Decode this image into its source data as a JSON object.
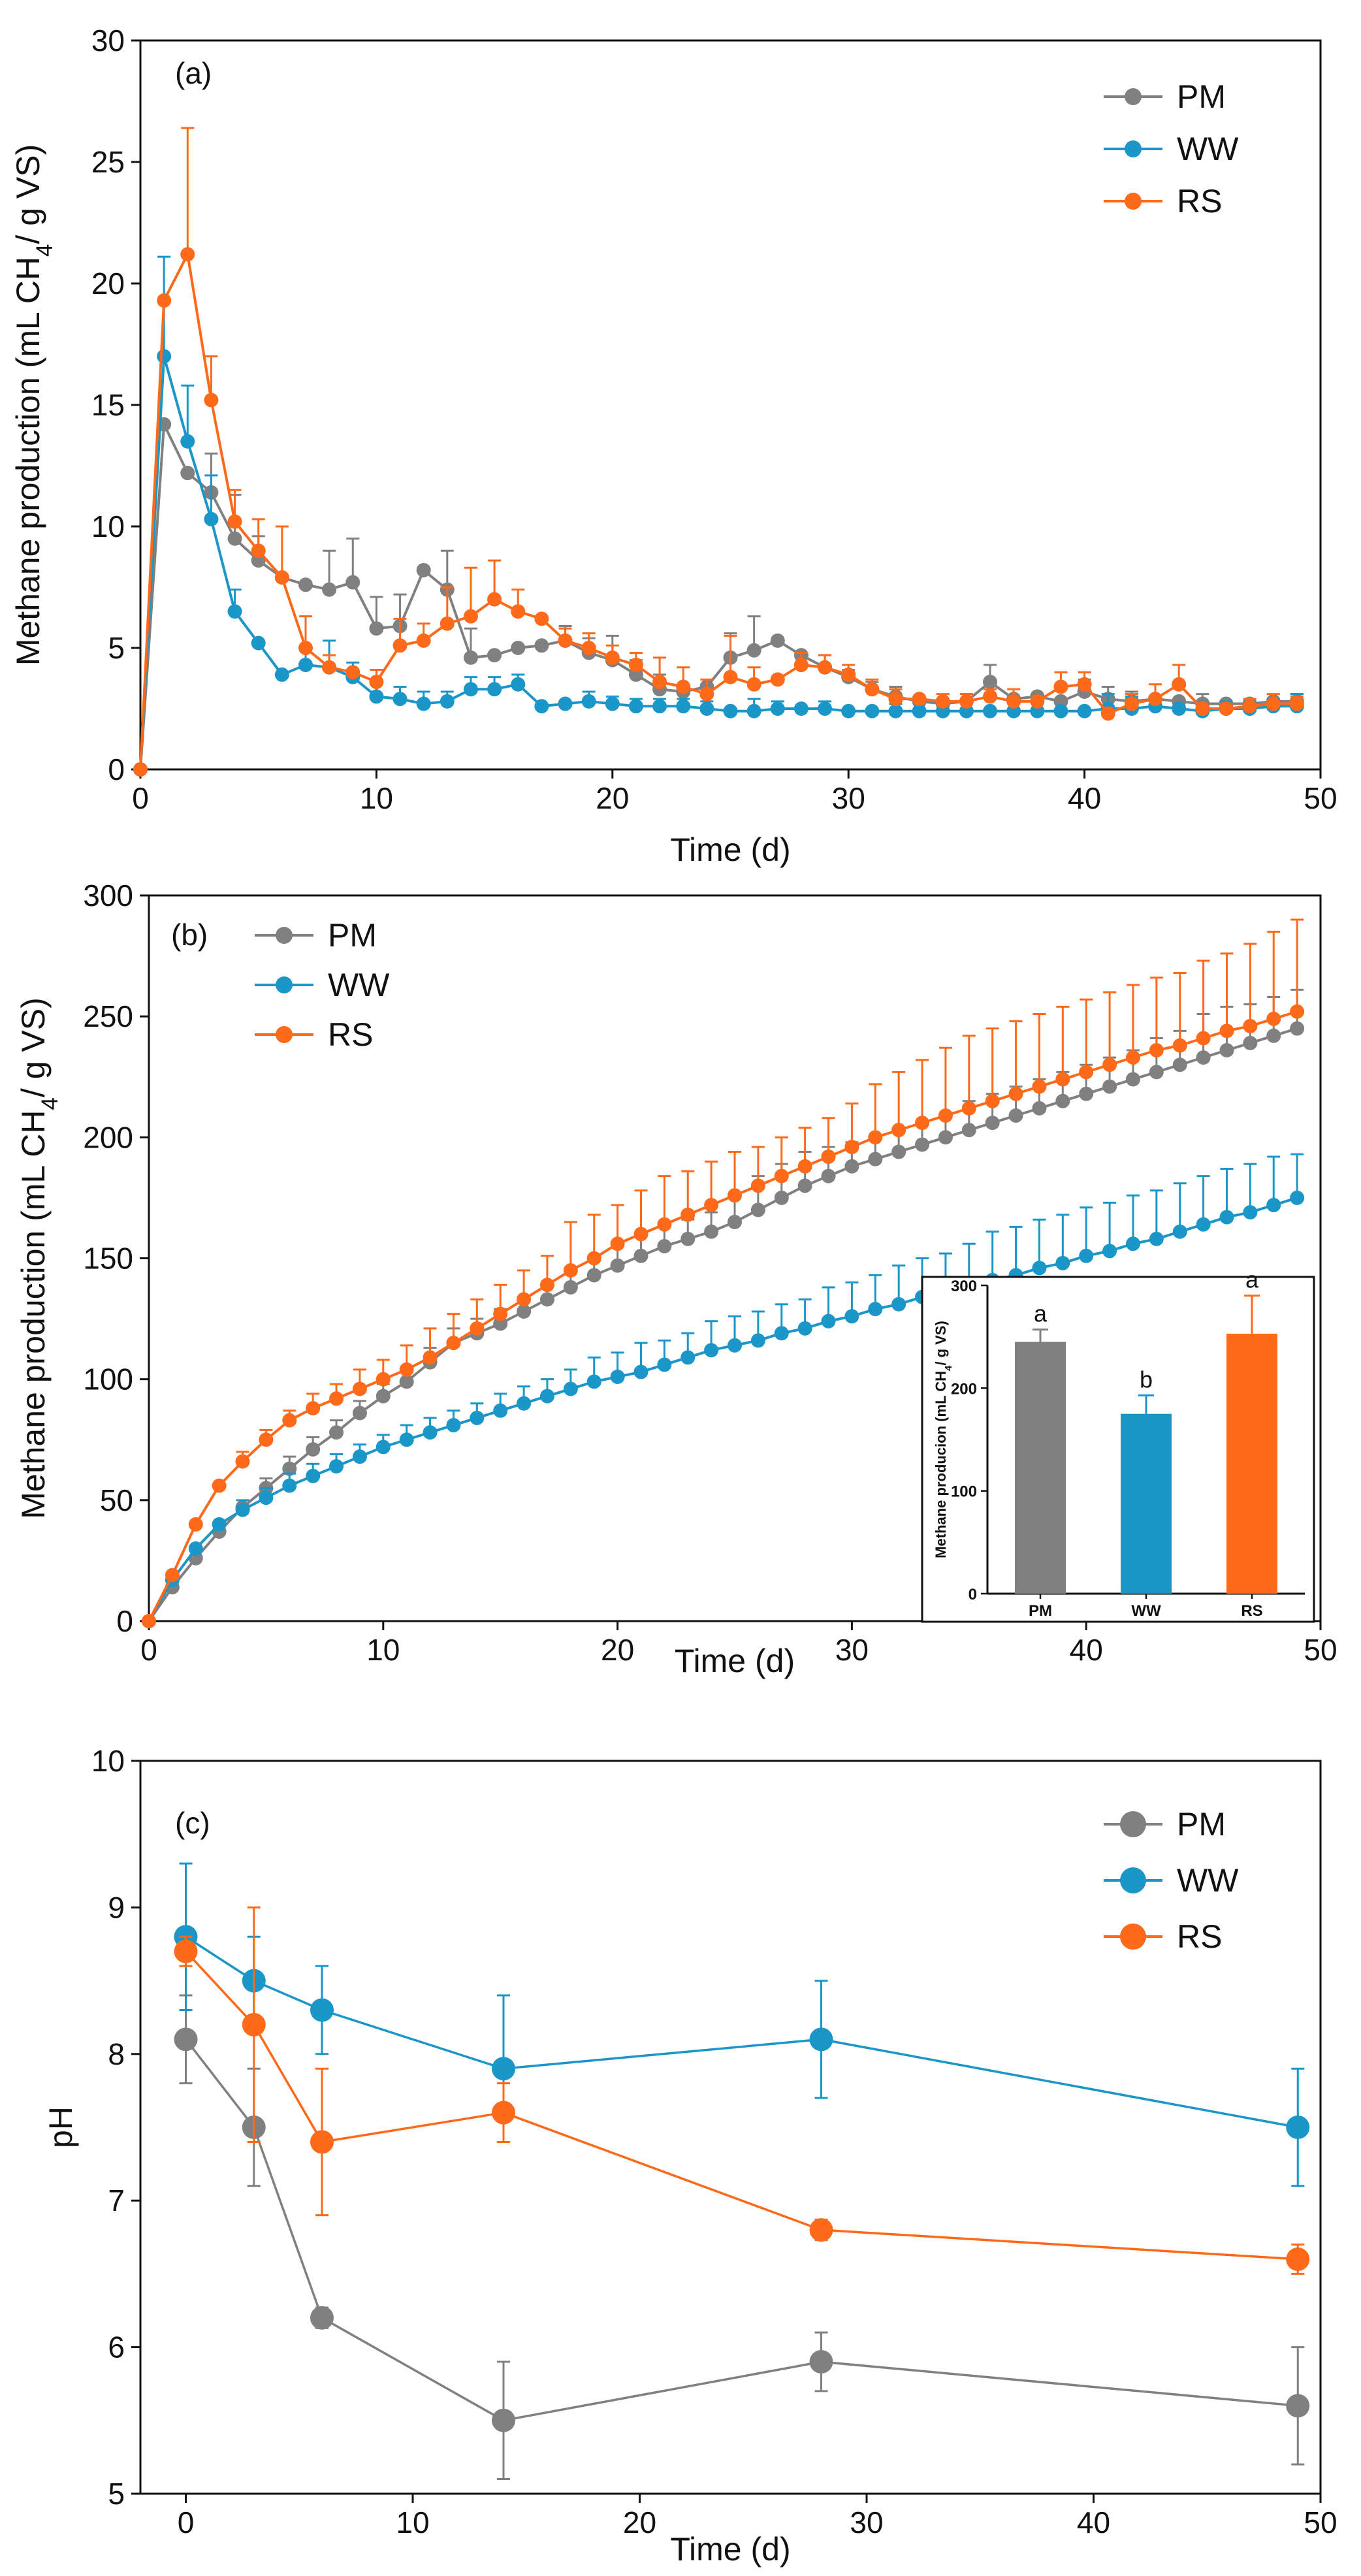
{
  "colors": {
    "PM": "#808080",
    "WW": "#1a96c8",
    "RS": "#ff6a1a",
    "axis": "#111111"
  },
  "chart_data": [
    {
      "type": "line",
      "panel": "(a)",
      "xlabel": "Time (d)",
      "ylabel": "Methane production (mL CH4/ g VS)",
      "ylabel_parts": [
        "Methane production (mL CH",
        "4",
        "/ g VS)"
      ],
      "xlim": [
        0,
        50
      ],
      "ylim": [
        0,
        30
      ],
      "xticks": [
        0,
        10,
        20,
        30,
        40,
        50
      ],
      "yticks": [
        0,
        5,
        10,
        15,
        20,
        25,
        30
      ],
      "legend": "top-right",
      "series": [
        {
          "name": "PM",
          "x": [
            0,
            1,
            2,
            3,
            4,
            5,
            6,
            7,
            8,
            9,
            10,
            11,
            12,
            13,
            14,
            15,
            16,
            17,
            18,
            19,
            20,
            21,
            22,
            23,
            24,
            25,
            26,
            27,
            28,
            29,
            30,
            31,
            32,
            33,
            34,
            35,
            36,
            37,
            38,
            39,
            40,
            41,
            42,
            43,
            44,
            45,
            46,
            47,
            48,
            49
          ],
          "y": [
            0,
            14.2,
            12.2,
            11.4,
            9.5,
            8.6,
            7.9,
            7.6,
            7.4,
            7.7,
            5.8,
            5.9,
            8.2,
            7.4,
            4.6,
            4.7,
            5.0,
            5.1,
            5.3,
            4.8,
            4.5,
            3.9,
            3.3,
            3.2,
            3.4,
            4.6,
            4.9,
            5.3,
            4.7,
            4.2,
            3.8,
            3.3,
            3.0,
            2.8,
            2.7,
            2.8,
            3.6,
            2.9,
            3.0,
            2.8,
            3.2,
            2.9,
            2.8,
            2.9,
            2.8,
            2.7,
            2.7,
            2.7,
            2.8,
            2.8
          ],
          "err": [
            0,
            0,
            0,
            1.6,
            1.8,
            1.0,
            0,
            0,
            1.6,
            1.8,
            1.3,
            1.3,
            0,
            1.6,
            1.2,
            0,
            0,
            0,
            0.6,
            0.6,
            1.0,
            0.6,
            0.6,
            0,
            0,
            1.0,
            1.4,
            0,
            0,
            0.5,
            0.3,
            0.3,
            0.4,
            0,
            0,
            0.3,
            0.7,
            0,
            0,
            0,
            0.5,
            0.5,
            0.4,
            0,
            0,
            0.4,
            0,
            0,
            0,
            0.3
          ]
        },
        {
          "name": "WW",
          "x": [
            0,
            1,
            2,
            3,
            4,
            5,
            6,
            7,
            8,
            9,
            10,
            11,
            12,
            13,
            14,
            15,
            16,
            17,
            18,
            19,
            20,
            21,
            22,
            23,
            24,
            25,
            26,
            27,
            28,
            29,
            30,
            31,
            32,
            33,
            34,
            35,
            36,
            37,
            38,
            39,
            40,
            41,
            42,
            43,
            44,
            45,
            46,
            47,
            48,
            49
          ],
          "y": [
            0,
            17.0,
            13.5,
            10.3,
            6.5,
            5.2,
            3.9,
            4.3,
            4.2,
            3.8,
            3.0,
            2.9,
            2.7,
            2.8,
            3.3,
            3.3,
            3.5,
            2.6,
            2.7,
            2.8,
            2.7,
            2.6,
            2.6,
            2.6,
            2.5,
            2.4,
            2.4,
            2.5,
            2.5,
            2.5,
            2.4,
            2.4,
            2.4,
            2.4,
            2.4,
            2.4,
            2.4,
            2.4,
            2.4,
            2.4,
            2.4,
            2.5,
            2.5,
            2.6,
            2.5,
            2.4,
            2.5,
            2.5,
            2.6,
            2.6
          ],
          "err": [
            0,
            4.1,
            2.3,
            1.8,
            0.9,
            0,
            0,
            0.7,
            1.1,
            0.6,
            0.5,
            0.5,
            0.5,
            0.4,
            0.5,
            0.5,
            0.4,
            0,
            0,
            0.4,
            0.3,
            0.3,
            0.3,
            0.3,
            0.3,
            0,
            0.5,
            0.3,
            0,
            0.3,
            0,
            0,
            0.3,
            0,
            0,
            0,
            0,
            0,
            0,
            0,
            0,
            0.6,
            0.5,
            0,
            0,
            0,
            0.3,
            0.3,
            0.3,
            0.5
          ]
        },
        {
          "name": "RS",
          "x": [
            0,
            1,
            2,
            3,
            4,
            5,
            6,
            7,
            8,
            9,
            10,
            11,
            12,
            13,
            14,
            15,
            16,
            17,
            18,
            19,
            20,
            21,
            22,
            23,
            24,
            25,
            26,
            27,
            28,
            29,
            30,
            31,
            32,
            33,
            34,
            35,
            36,
            37,
            38,
            39,
            40,
            41,
            42,
            43,
            44,
            45,
            46,
            47,
            48,
            49
          ],
          "y": [
            0,
            19.3,
            21.2,
            15.2,
            10.2,
            9.0,
            7.9,
            5.0,
            4.2,
            4.0,
            3.6,
            5.1,
            5.3,
            6.0,
            6.3,
            7.0,
            6.5,
            6.2,
            5.3,
            5.0,
            4.6,
            4.3,
            3.6,
            3.4,
            3.1,
            3.8,
            3.5,
            3.7,
            4.3,
            4.2,
            3.9,
            3.3,
            2.9,
            2.9,
            2.8,
            2.8,
            3.0,
            2.8,
            2.8,
            3.4,
            3.5,
            2.3,
            2.7,
            2.9,
            3.5,
            2.5,
            2.5,
            2.6,
            2.7,
            2.7
          ],
          "err": [
            0,
            0,
            5.2,
            1.8,
            1.3,
            1.3,
            2.1,
            1.3,
            0.5,
            0,
            0.5,
            1.1,
            0.7,
            1.5,
            2.0,
            1.6,
            0.9,
            0,
            0.5,
            0.6,
            0.5,
            0.5,
            1.0,
            0.8,
            0.6,
            1.7,
            0.7,
            0,
            0.5,
            0.5,
            0.4,
            0.4,
            0.4,
            0,
            0.3,
            0.3,
            0.3,
            0.5,
            0,
            0.6,
            0.5,
            0,
            0.4,
            0.6,
            0.8,
            0,
            0.2,
            0.3,
            0.4,
            0.3
          ]
        }
      ]
    },
    {
      "type": "line",
      "panel": "(b)",
      "xlabel": "Time (d)",
      "ylabel": "Methane production (mL CH4/ g VS)",
      "ylabel_parts": [
        "Methane production (mL CH",
        "4",
        "/ g VS)"
      ],
      "xlim": [
        0,
        50
      ],
      "ylim": [
        0,
        300
      ],
      "xticks": [
        0,
        10,
        20,
        30,
        40,
        50
      ],
      "yticks": [
        0,
        50,
        100,
        150,
        200,
        250,
        300
      ],
      "legend": "top-left",
      "series": [
        {
          "name": "PM",
          "x": [
            0,
            1,
            2,
            3,
            4,
            5,
            6,
            7,
            8,
            9,
            10,
            11,
            12,
            13,
            14,
            15,
            16,
            17,
            18,
            19,
            20,
            21,
            22,
            23,
            24,
            25,
            26,
            27,
            28,
            29,
            30,
            31,
            32,
            33,
            34,
            35,
            36,
            37,
            38,
            39,
            40,
            41,
            42,
            43,
            44,
            45,
            46,
            47,
            48,
            49
          ],
          "y": [
            0,
            14,
            26,
            37,
            47,
            55,
            63,
            71,
            78,
            86,
            93,
            99,
            107,
            115,
            119,
            123,
            128,
            133,
            138,
            143,
            147,
            151,
            155,
            158,
            161,
            165,
            170,
            175,
            180,
            184,
            188,
            191,
            194,
            197,
            200,
            203,
            206,
            209,
            212,
            215,
            218,
            221,
            224,
            227,
            230,
            233,
            236,
            239,
            242,
            245
          ],
          "err": [
            0,
            0,
            0,
            0,
            0,
            4,
            5,
            5,
            5,
            5,
            5,
            6,
            6,
            6,
            6,
            6,
            6,
            6,
            6,
            8,
            8,
            8,
            8,
            8,
            8,
            12,
            14,
            14,
            14,
            12,
            10,
            10,
            10,
            10,
            10,
            12,
            12,
            12,
            12,
            12,
            12,
            12,
            12,
            14,
            14,
            18,
            18,
            16,
            16,
            16
          ]
        },
        {
          "name": "WW",
          "x": [
            0,
            1,
            2,
            3,
            4,
            5,
            6,
            7,
            8,
            9,
            10,
            11,
            12,
            13,
            14,
            15,
            16,
            17,
            18,
            19,
            20,
            21,
            22,
            23,
            24,
            25,
            26,
            27,
            28,
            29,
            30,
            31,
            32,
            33,
            34,
            35,
            36,
            37,
            38,
            39,
            40,
            41,
            42,
            43,
            44,
            45,
            46,
            47,
            48,
            49
          ],
          "y": [
            0,
            17,
            30,
            40,
            46,
            51,
            56,
            60,
            64,
            68,
            72,
            75,
            78,
            81,
            84,
            87,
            90,
            93,
            96,
            99,
            101,
            103,
            106,
            109,
            112,
            114,
            116,
            119,
            121,
            124,
            126,
            129,
            131,
            134,
            136,
            138,
            141,
            143,
            146,
            148,
            151,
            153,
            156,
            158,
            161,
            164,
            167,
            169,
            172,
            175
          ],
          "err": [
            0,
            0,
            0,
            0,
            4,
            4,
            5,
            5,
            5,
            5,
            5,
            6,
            6,
            6,
            6,
            7,
            7,
            7,
            8,
            10,
            10,
            12,
            10,
            10,
            12,
            12,
            12,
            12,
            12,
            14,
            14,
            14,
            16,
            16,
            16,
            18,
            20,
            20,
            20,
            20,
            20,
            20,
            20,
            20,
            20,
            20,
            20,
            20,
            20,
            18
          ]
        },
        {
          "name": "RS",
          "x": [
            0,
            1,
            2,
            3,
            4,
            5,
            6,
            7,
            8,
            9,
            10,
            11,
            12,
            13,
            14,
            15,
            16,
            17,
            18,
            19,
            20,
            21,
            22,
            23,
            24,
            25,
            26,
            27,
            28,
            29,
            30,
            31,
            32,
            33,
            34,
            35,
            36,
            37,
            38,
            39,
            40,
            41,
            42,
            43,
            44,
            45,
            46,
            47,
            48,
            49
          ],
          "y": [
            0,
            19,
            40,
            56,
            66,
            75,
            83,
            88,
            92,
            96,
            100,
            104,
            109,
            115,
            121,
            127,
            133,
            139,
            145,
            150,
            156,
            160,
            164,
            168,
            172,
            176,
            180,
            184,
            188,
            192,
            196,
            200,
            203,
            206,
            209,
            212,
            215,
            218,
            221,
            224,
            227,
            230,
            233,
            236,
            238,
            241,
            244,
            246,
            249,
            252
          ],
          "err": [
            0,
            0,
            0,
            0,
            4,
            4,
            4,
            6,
            6,
            8,
            8,
            10,
            12,
            12,
            12,
            12,
            12,
            12,
            20,
            18,
            16,
            18,
            20,
            18,
            18,
            18,
            16,
            16,
            16,
            16,
            18,
            22,
            24,
            26,
            28,
            30,
            30,
            30,
            30,
            30,
            30,
            30,
            30,
            30,
            30,
            32,
            32,
            34,
            36,
            38
          ]
        }
      ],
      "inset": {
        "type": "bar",
        "ylabel": "Methane producion (mL CH4/ g VS)",
        "ylabel_parts": [
          "Methane producion (mL CH",
          "4",
          "/ g VS)"
        ],
        "categories": [
          "PM",
          "WW",
          "RS"
        ],
        "values": [
          245,
          175,
          253
        ],
        "err": [
          12,
          18,
          37
        ],
        "letters": [
          "a",
          "b",
          "a"
        ],
        "ylim": [
          0,
          300
        ],
        "yticks": [
          0,
          100,
          200,
          300
        ]
      }
    },
    {
      "type": "line",
      "panel": "(c)",
      "xlabel": "Time (d)",
      "ylabel": "pH",
      "ylabel_parts": [
        "pH"
      ],
      "xlim": [
        -2,
        50
      ],
      "ylim": [
        5,
        10
      ],
      "xticks": [
        0,
        10,
        20,
        30,
        40,
        50
      ],
      "yticks": [
        5,
        6,
        7,
        8,
        9,
        10
      ],
      "legend": "top-right",
      "series": [
        {
          "name": "PM",
          "x": [
            0,
            3,
            6,
            14,
            28,
            49
          ],
          "y": [
            8.1,
            7.5,
            6.2,
            5.5,
            5.9,
            5.6
          ],
          "err": [
            0.3,
            0.4,
            0.07,
            0.4,
            0.2,
            0.4
          ]
        },
        {
          "name": "WW",
          "x": [
            0,
            3,
            6,
            14,
            28,
            49
          ],
          "y": [
            8.8,
            8.5,
            8.3,
            7.9,
            8.1,
            7.5
          ],
          "err": [
            0.5,
            0.3,
            0.3,
            0.5,
            0.4,
            0.4
          ]
        },
        {
          "name": "RS",
          "x": [
            0,
            3,
            6,
            14,
            28,
            49
          ],
          "y": [
            8.7,
            8.2,
            7.4,
            7.6,
            6.8,
            6.6
          ],
          "err": [
            0.1,
            0.8,
            0.5,
            0.2,
            0.07,
            0.1
          ]
        }
      ]
    }
  ]
}
